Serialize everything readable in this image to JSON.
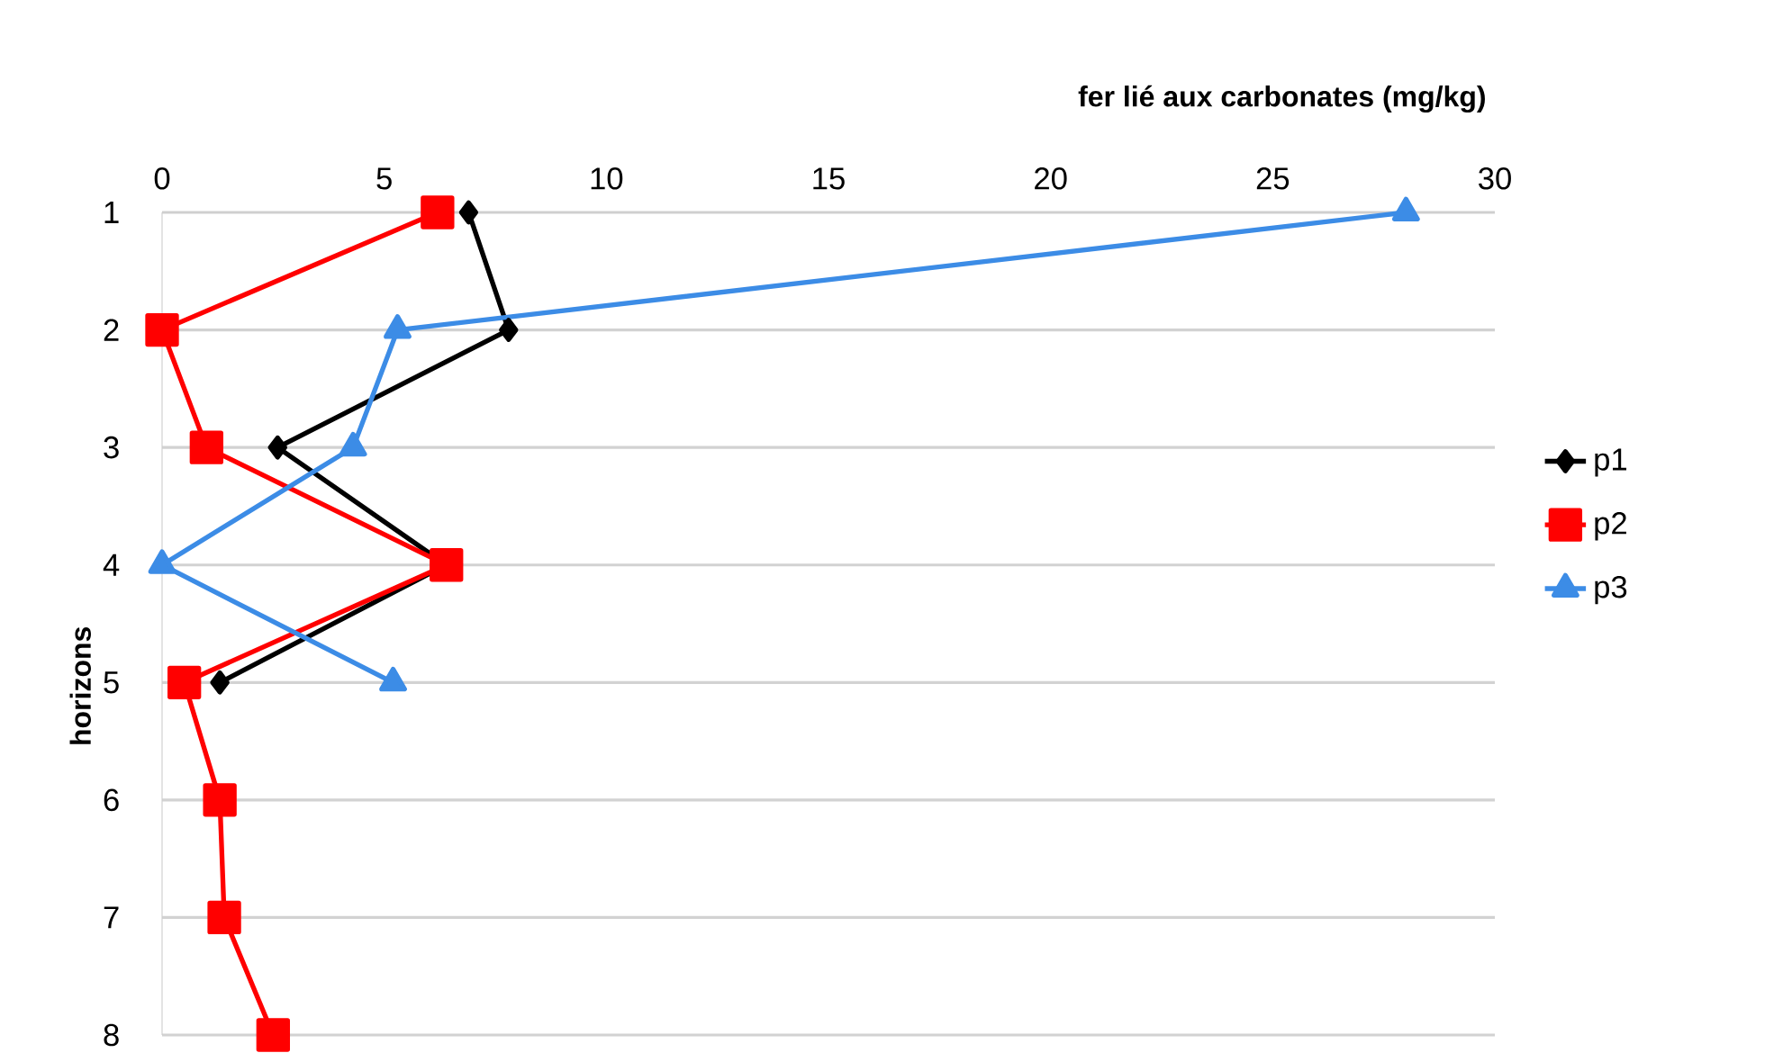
{
  "chart_data": {
    "type": "line",
    "orientation": "horizontal",
    "xlabel": "fer lié aux carbonates (mg/kg)",
    "ylabel": "horizons",
    "categories": [
      "1",
      "2",
      "3",
      "4",
      "5",
      "6",
      "7",
      "8"
    ],
    "xlim": [
      0,
      30
    ],
    "xticks": [
      0,
      5,
      10,
      15,
      20,
      25,
      30
    ],
    "grid": "y",
    "legend": "right",
    "series": [
      {
        "name": "p1",
        "color": "#000000",
        "marker": "diamond",
        "values": [
          6.9,
          7.8,
          2.6,
          6.4,
          1.3,
          null,
          null,
          null
        ]
      },
      {
        "name": "p2",
        "color": "#ff0000",
        "marker": "square",
        "values": [
          6.2,
          0,
          1.0,
          6.4,
          0.5,
          1.3,
          1.4,
          2.5
        ]
      },
      {
        "name": "p3",
        "color": "#3c8ce6",
        "marker": "triangle",
        "values": [
          28,
          5.3,
          4.3,
          0,
          5.2,
          null,
          null,
          null
        ]
      }
    ]
  }
}
